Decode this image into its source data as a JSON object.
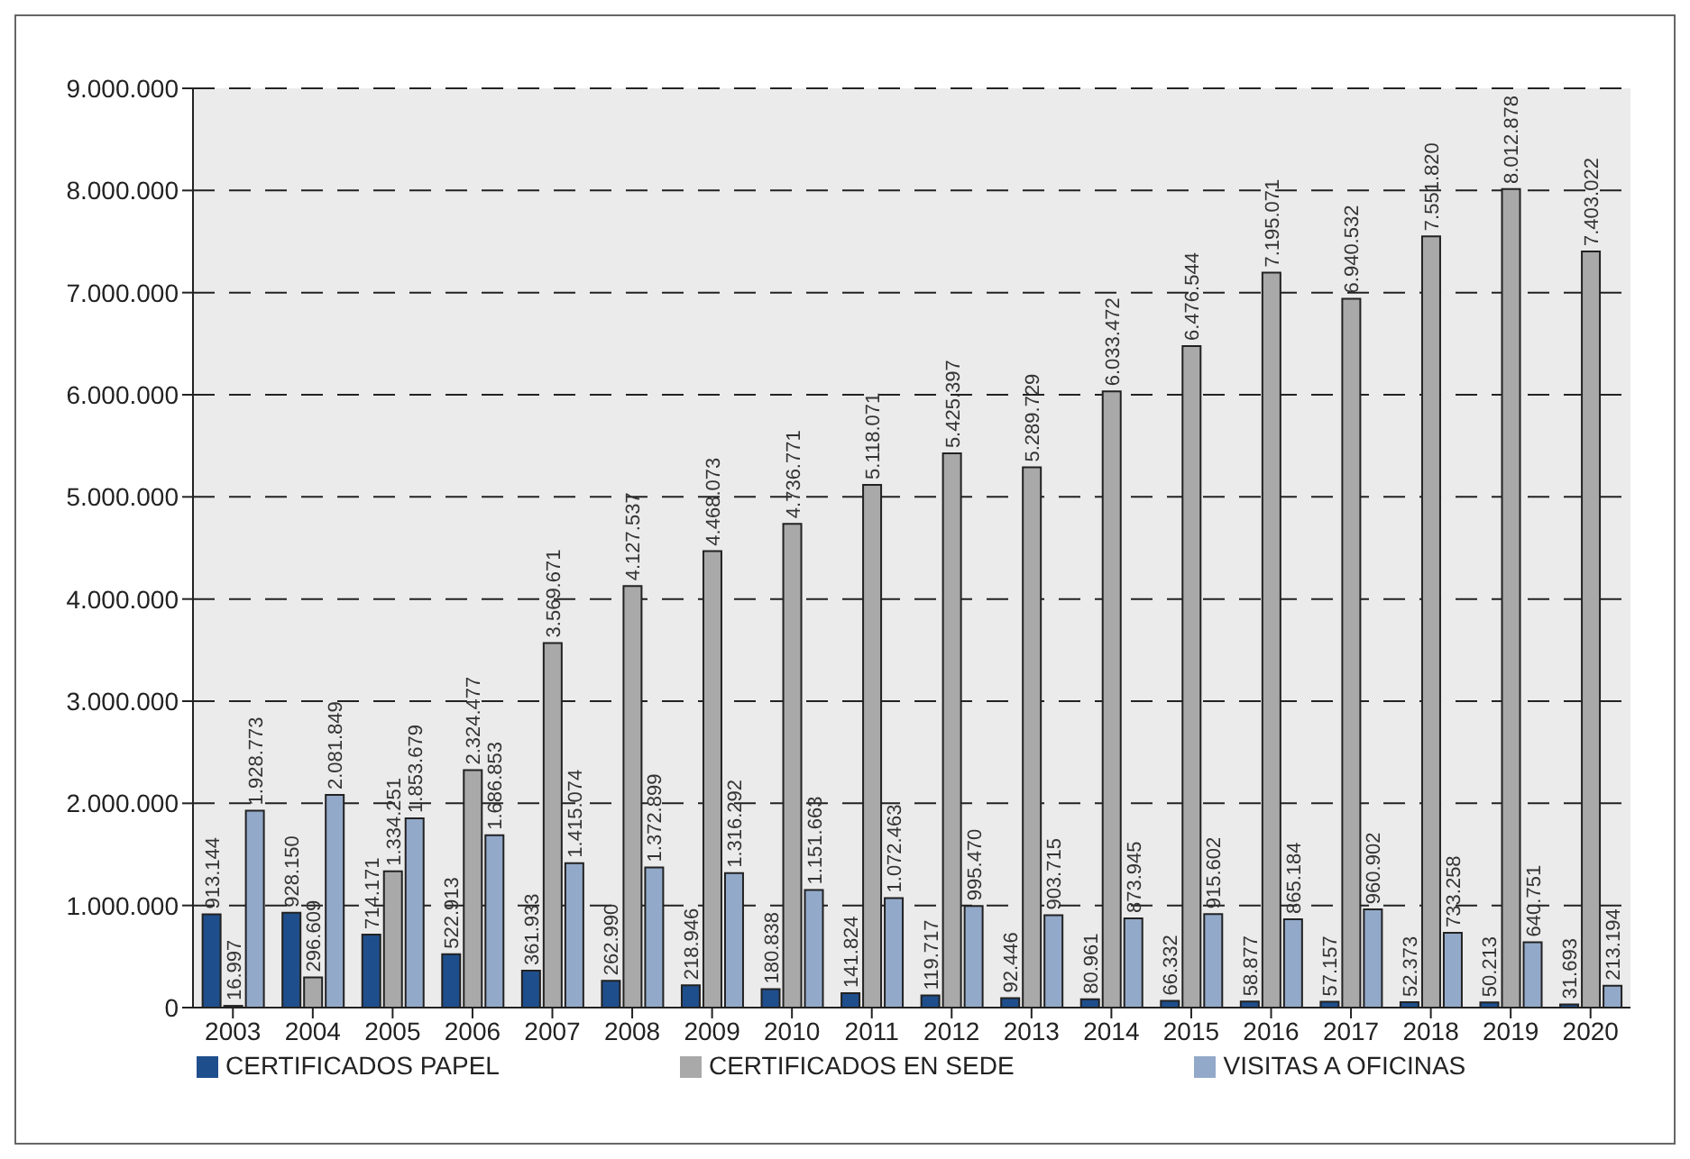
{
  "chart_data": {
    "type": "bar",
    "categories": [
      "2003",
      "2004",
      "2005",
      "2006",
      "2007",
      "2008",
      "2009",
      "2010",
      "2011",
      "2012",
      "2013",
      "2014",
      "2015",
      "2016",
      "2017",
      "2018",
      "2019",
      "2020"
    ],
    "series": [
      {
        "name": "CERTIFICADOS PAPEL",
        "color": "#1f4e8c",
        "values": [
          913144,
          928150,
          714171,
          522913,
          361933,
          262990,
          218946,
          180838,
          141824,
          119717,
          92446,
          80961,
          66332,
          58877,
          57157,
          52373,
          50213,
          31693
        ],
        "value_labels": [
          "913.144",
          "928.150",
          "714.171",
          "522.913",
          "361.933",
          "262.990",
          "218.946",
          "180.838",
          "141.824",
          "119.717",
          "92.446",
          "80.961",
          "66.332",
          "58.877",
          "57.157",
          "52.373",
          "50.213",
          "31.693"
        ]
      },
      {
        "name": "CERTIFICADOS EN SEDE",
        "color": "#a9a9a9",
        "values": [
          16997,
          296609,
          1334251,
          2324477,
          3569671,
          4127537,
          4468073,
          4736771,
          5118071,
          5425397,
          5289729,
          6033472,
          6476544,
          7195071,
          6940532,
          7551820,
          8012878,
          7403022
        ],
        "value_labels": [
          "16.997",
          "296.609",
          "1.334.251",
          "2.324.477",
          "3.569.671",
          "4.127.537",
          "4.468.073",
          "4.736.771",
          "5.118.071",
          "5.425.397",
          "5.289.729",
          "6.033.472",
          "6.476.544",
          "7.195.071",
          "6.940.532",
          "7.551.820",
          "8.012.878",
          "7.403.022"
        ]
      },
      {
        "name": "VISITAS A OFICINAS",
        "color": "#93a9c9",
        "values": [
          1928773,
          2081849,
          1853679,
          1686853,
          1415074,
          1372899,
          1316292,
          1151663,
          1072463,
          995470,
          903715,
          873945,
          915602,
          865184,
          960902,
          733258,
          640751,
          213194
        ],
        "value_labels": [
          "1.928.773",
          "2.081.849",
          "1.853.679",
          "1.686.853",
          "1.415.074",
          "1.372.899",
          "1.316.292",
          "1.151.663",
          "1.072.463",
          "995.470",
          "903.715",
          "873.945",
          "915.602",
          "865.184",
          "960.902",
          "733.258",
          "640.751",
          "213.194"
        ]
      }
    ],
    "ylim": [
      0,
      9000000
    ],
    "yticks": [
      0,
      {
        "value": 1000000,
        "label": "1.000.000"
      },
      {
        "value": 2000000,
        "label": "2.000.000"
      },
      {
        "value": 3000000,
        "label": "3.000.000"
      },
      {
        "value": 4000000,
        "label": "4.000.000"
      },
      {
        "value": 5000000,
        "label": "5.000.000"
      },
      {
        "value": 6000000,
        "label": "6.000.000"
      },
      {
        "value": 7000000,
        "label": "7.000.000"
      },
      {
        "value": 8000000,
        "label": "8.000.000"
      },
      {
        "value": 9000000,
        "label": "9.000.000"
      }
    ],
    "grid": "y",
    "legend": "bottom"
  }
}
